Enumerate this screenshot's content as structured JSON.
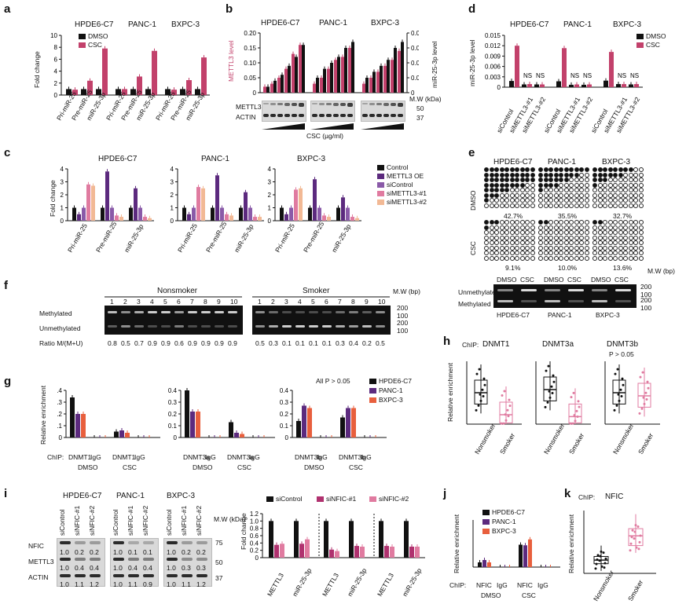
{
  "colors": {
    "dmso": "#111111",
    "csc": "#c2416b",
    "purple": "#5c2a7e",
    "magenta": "#b0326f",
    "pink": "#e07ba0",
    "peach": "#f2b995",
    "orange": "#e85f3d",
    "gray": "#555555"
  },
  "panel_labels": [
    "a",
    "b",
    "c",
    "d",
    "e",
    "f",
    "g",
    "h",
    "i",
    "j",
    "k"
  ],
  "a": {
    "ylabel": "Fold change",
    "legend": [
      "DMSO",
      "CSC"
    ],
    "groups": [
      "HPDE6-C7",
      "PANC-1",
      "BXPC-3"
    ],
    "categories": [
      "Pri-miR-25",
      "Pre-miR-25",
      "miR-25-3p"
    ],
    "yticks": [
      "0",
      "2",
      "4",
      "6",
      "8",
      "10"
    ]
  },
  "b": {
    "ylabel_left": "METTL3 level",
    "ylabel_right": "miR-25-3p level",
    "groups": [
      "HPDE6-C7",
      "PANC-1",
      "BXPC-3"
    ],
    "yticks_left": [
      "0",
      "0.05",
      "0.10",
      "0.15",
      "0.20"
    ],
    "yticks_right": [
      "0",
      "0.005",
      "0.010",
      "0.015",
      "0.020"
    ],
    "blot_labels": [
      "METTL3",
      "ACTIN"
    ],
    "mw_label": "M.W (kDa)",
    "mw": [
      "50",
      "37"
    ],
    "xlabel": "CSC (µg/ml)"
  },
  "c": {
    "ylabel": "Fold change",
    "groups": [
      "HPDE6-C7",
      "PANC-1",
      "BXPC-3"
    ],
    "categories": [
      "Pri-miR-25",
      "Pre-miR-25",
      "miR-25-3p"
    ],
    "legend": [
      "Control",
      "METTL3 OE",
      "siControl",
      "siMETTL3-#1",
      "siMETTL3-#2"
    ],
    "yticks": [
      "0",
      "1",
      "2",
      "3",
      "4"
    ]
  },
  "d": {
    "ylabel": "miR-25-3p level",
    "groups": [
      "HPDE6-C7",
      "PANC-1",
      "BXPC-3"
    ],
    "categories": [
      "siControl",
      "siMETTL3-#1",
      "siMETTL3-#2"
    ],
    "legend": [
      "DMSO",
      "CSC"
    ],
    "yticks": [
      "0",
      "0.003",
      "0.006",
      "0.009",
      "0.012",
      "0.015"
    ],
    "ns": "NS"
  },
  "e": {
    "groups": [
      "HPDE6-C7",
      "PANC-1",
      "BXPC-3"
    ],
    "rows": [
      "DMSO",
      "CSC"
    ],
    "dmso_pct": [
      "42.7%",
      "35.5%",
      "32.7%"
    ],
    "csc_pct": [
      "9.1%",
      "10.0%",
      "13.6%"
    ],
    "gel_header": [
      "DMSO",
      "CSC",
      "DMSO",
      "CSC",
      "DMSO",
      "CSC"
    ],
    "gel_rows": [
      "Unmethylated",
      "Methylated"
    ],
    "gel_mw_label": "M.W (bp)",
    "gel_mw": [
      "200",
      "100",
      "200",
      "100"
    ]
  },
  "f": {
    "groups": [
      "Nonsmoker",
      "Smoker"
    ],
    "lanes": [
      "1",
      "2",
      "3",
      "4",
      "5",
      "6",
      "7",
      "8",
      "9",
      "10"
    ],
    "rows": [
      "Methylated",
      "Unmethylated"
    ],
    "mw_label": "M.W (bp)",
    "mw": [
      "200",
      "100",
      "200",
      "100"
    ],
    "ratio_label": "Ratio M/(M+U)",
    "ratios_nonsmoker": [
      "0.8",
      "0.5",
      "0.7",
      "0.9",
      "0.9",
      "0.6",
      "0.9",
      "0.9",
      "0.9",
      "0.9"
    ],
    "ratios_smoker": [
      "0.5",
      "0.3",
      "0.1",
      "0.1",
      "0.1",
      "0.1",
      "0.3",
      "0.4",
      "0.2",
      "0.5"
    ]
  },
  "g": {
    "ylabel": "Relative enrichment",
    "chip_label": "ChIP:",
    "subpanels": [
      {
        "ab": [
          "DNMT1",
          "IgG",
          "DNMT1",
          "IgG"
        ],
        "yticks": [
          "0",
          "0.1",
          "0.2",
          "0.3",
          "0.4"
        ]
      },
      {
        "ab": [
          "DNMT3a",
          "IgG",
          "DNMT3a",
          "IgG"
        ],
        "yticks": [
          "0",
          "0.1",
          "0.2",
          "0.3",
          "0.4"
        ]
      },
      {
        "ab": [
          "DNMT3b",
          "IgG",
          "DNMT3b",
          "IgG"
        ],
        "yticks": [
          "0",
          "0.1",
          "0.2",
          "0.3",
          "0.4"
        ]
      }
    ],
    "conditions": [
      "DMSO",
      "CSC"
    ],
    "note": "All P > 0.05",
    "legend": [
      "HPDE6-C7",
      "PANC-1",
      "BXPC-3"
    ]
  },
  "h": {
    "ylabel": "Relative enrichment",
    "chip_label": "ChIP:",
    "titles": [
      "DNMT1",
      "DNMT3a",
      "DNMT3b"
    ],
    "note": "P > 0.05",
    "categories": [
      "Nonsmoker",
      "Smoker"
    ]
  },
  "i": {
    "groups": [
      "HPDE6-C7",
      "PANC-1",
      "BXPC-3"
    ],
    "lanes": [
      "siControl",
      "siNFIC-#1",
      "siNFIC-#2"
    ],
    "blot_labels": [
      "NFIC",
      "METTL3",
      "ACTIN"
    ],
    "mw_label": "M.W (kDa)",
    "mw": [
      "75",
      "50",
      "37"
    ],
    "nfic_ratios": [
      "1.0",
      "0.2",
      "0.2",
      "1.0",
      "0.1",
      "0.1",
      "1.0",
      "0.2",
      "0.2"
    ],
    "mettl3_ratios": [
      "1.0",
      "0.4",
      "0.4",
      "1.0",
      "0.4",
      "0.4",
      "1.0",
      "0.3",
      "0.3"
    ],
    "actin_ratios": [
      "1.0",
      "1.1",
      "1.2",
      "1.0",
      "1.1",
      "0.9",
      "1.0",
      "1.1",
      "1.2"
    ],
    "ylabel": "Fold change",
    "legend": [
      "siControl",
      "siNFIC-#1",
      "siNFIC-#2"
    ],
    "categories": [
      "METTL3",
      "miR-25-3p"
    ],
    "yticks": [
      "0",
      "0.2",
      "0.4",
      "0.6",
      "0.8",
      "1.0",
      "1.2"
    ]
  },
  "j": {
    "ylabel": "Relative enrichment",
    "chip_label": "ChIP:",
    "ab": [
      "NFIC",
      "IgG",
      "NFIC",
      "IgG"
    ],
    "conditions": [
      "DMSO",
      "CSC"
    ],
    "legend": [
      "HPDE6-C7",
      "PANC-1",
      "BXPC-3"
    ]
  },
  "k": {
    "ylabel": "Relative enrichment",
    "chip_label": "ChIP:",
    "title": "NFIC",
    "categories": [
      "Nonsmoker",
      "Smoker"
    ]
  },
  "chart_data": [
    {
      "type": "bar",
      "panel": "a",
      "categories": [
        "HPDE6-C7 Pri-miR-25",
        "HPDE6-C7 Pre-miR-25",
        "HPDE6-C7 miR-25-3p",
        "PANC-1 Pri-miR-25",
        "PANC-1 Pre-miR-25",
        "PANC-1 miR-25-3p",
        "BXPC-3 Pri-miR-25",
        "BXPC-3 Pre-miR-25",
        "BXPC-3 miR-25-3p"
      ],
      "series": [
        {
          "name": "DMSO",
          "values": [
            1.0,
            1.0,
            1.0,
            1.0,
            1.0,
            1.0,
            1.0,
            1.0,
            1.0
          ]
        },
        {
          "name": "CSC",
          "values": [
            0.9,
            2.4,
            7.8,
            1.0,
            3.1,
            7.4,
            0.9,
            2.5,
            6.3
          ]
        }
      ],
      "ylim": [
        0,
        10
      ],
      "ylabel": "Fold change"
    },
    {
      "type": "bar",
      "panel": "b",
      "categories": [
        "HPDE6-C7",
        "PANC-1",
        "BXPC-3"
      ],
      "series": [
        {
          "name": "METTL3 level",
          "values": [
            [
              0.02,
              0.03,
              0.05,
              0.08,
              0.13,
              0.16
            ],
            [
              0.03,
              0.05,
              0.08,
              0.11,
              0.12,
              0.15
            ],
            [
              0.03,
              0.05,
              0.07,
              0.09,
              0.11,
              0.14
            ]
          ]
        },
        {
          "name": "miR-25-3p level",
          "values": [
            [
              0.002,
              0.004,
              0.006,
              0.009,
              0.012,
              0.016
            ],
            [
              0.005,
              0.008,
              0.01,
              0.012,
              0.015,
              0.017
            ],
            [
              0.005,
              0.007,
              0.009,
              0.011,
              0.015,
              0.017
            ]
          ]
        }
      ],
      "ylim": [
        0,
        0.2
      ],
      "ylim_right": [
        0,
        0.02
      ]
    },
    {
      "type": "bar",
      "panel": "c",
      "categories": [
        "HPDE6-C7 Pri-miR-25",
        "HPDE6-C7 Pre-miR-25",
        "HPDE6-C7 miR-25-3p",
        "PANC-1 Pri-miR-25",
        "PANC-1 Pre-miR-25",
        "PANC-1 miR-25-3p",
        "BXPC-3 Pri-miR-25",
        "BXPC-3 Pre-miR-25",
        "BXPC-3 miR-25-3p"
      ],
      "series": [
        {
          "name": "Control",
          "values": [
            1.0,
            1.0,
            1.0,
            1.0,
            1.0,
            1.0,
            1.0,
            1.0,
            1.0
          ]
        },
        {
          "name": "METTL3 OE",
          "values": [
            0.5,
            3.8,
            2.5,
            0.5,
            3.5,
            2.2,
            0.5,
            3.2,
            1.8
          ]
        },
        {
          "name": "siControl",
          "values": [
            1.0,
            1.0,
            1.0,
            1.0,
            1.0,
            1.0,
            1.0,
            1.0,
            1.0
          ]
        },
        {
          "name": "siMETTL3-#1",
          "values": [
            2.8,
            0.4,
            0.3,
            2.6,
            0.5,
            0.3,
            2.4,
            0.4,
            0.3
          ]
        },
        {
          "name": "siMETTL3-#2",
          "values": [
            2.7,
            0.3,
            0.2,
            2.5,
            0.4,
            0.3,
            2.5,
            0.3,
            0.2
          ]
        }
      ],
      "ylim": [
        0,
        4
      ]
    },
    {
      "type": "bar",
      "panel": "d",
      "categories": [
        "HPDE6-C7 siControl",
        "HPDE6-C7 siMETTL3-#1",
        "HPDE6-C7 siMETTL3-#2",
        "PANC-1 siControl",
        "PANC-1 siMETTL3-#1",
        "PANC-1 siMETTL3-#2",
        "BXPC-3 siControl",
        "BXPC-3 siMETTL3-#1",
        "BXPC-3 siMETTL3-#2"
      ],
      "series": [
        {
          "name": "DMSO",
          "values": [
            0.0018,
            0.0008,
            0.0008,
            0.0017,
            0.0007,
            0.0007,
            0.0019,
            0.0009,
            0.0008
          ]
        },
        {
          "name": "CSC",
          "values": [
            0.012,
            0.0009,
            0.0008,
            0.0113,
            0.0008,
            0.0008,
            0.0102,
            0.0009,
            0.0009
          ]
        }
      ],
      "ylim": [
        0,
        0.015
      ]
    },
    {
      "type": "bar",
      "panel": "g",
      "categories": [
        "DNMT1 DMSO",
        "IgG DMSO",
        "DNMT1 CSC",
        "IgG CSC",
        "DNMT3a DMSO",
        "IgG DMSO",
        "DNMT3a CSC",
        "IgG CSC",
        "DNMT3b DMSO",
        "IgG DMSO",
        "DNMT3b CSC",
        "IgG CSC"
      ],
      "series": [
        {
          "name": "HPDE6-C7",
          "values": [
            0.34,
            0.0,
            0.05,
            0.0,
            0.4,
            0.0,
            0.13,
            0.0,
            0.14,
            0.0,
            0.17,
            0.0
          ]
        },
        {
          "name": "PANC-1",
          "values": [
            0.2,
            0.0,
            0.06,
            0.0,
            0.22,
            0.0,
            0.04,
            0.0,
            0.27,
            0.0,
            0.25,
            0.0
          ]
        },
        {
          "name": "BXPC-3",
          "values": [
            0.2,
            0.0,
            0.04,
            0.0,
            0.22,
            0.0,
            0.03,
            0.0,
            0.25,
            0.0,
            0.25,
            0.0
          ]
        }
      ],
      "ylim": [
        0,
        0.4
      ]
    },
    {
      "type": "bar",
      "panel": "i",
      "categories": [
        "HPDE6-C7 METTL3",
        "HPDE6-C7 miR-25-3p",
        "PANC-1 METTL3",
        "PANC-1 miR-25-3p",
        "BXPC-3 METTL3",
        "BXPC-3 miR-25-3p"
      ],
      "series": [
        {
          "name": "siControl",
          "values": [
            1.0,
            1.0,
            1.0,
            1.0,
            1.0,
            1.0
          ]
        },
        {
          "name": "siNFIC-#1",
          "values": [
            0.35,
            0.38,
            0.22,
            0.32,
            0.32,
            0.3
          ]
        },
        {
          "name": "siNFIC-#2",
          "values": [
            0.38,
            0.5,
            0.18,
            0.3,
            0.3,
            0.3
          ]
        }
      ],
      "ylim": [
        0,
        1.2
      ],
      "ylabel": "Fold change"
    },
    {
      "type": "bar",
      "panel": "j",
      "categories": [
        "NFIC DMSO",
        "IgG DMSO",
        "NFIC CSC",
        "IgG CSC"
      ],
      "series": [
        {
          "name": "HPDE6-C7",
          "values": [
            0.08,
            0.0,
            0.38,
            0.0
          ]
        },
        {
          "name": "PANC-1",
          "values": [
            0.12,
            0.0,
            0.37,
            0.0
          ]
        },
        {
          "name": "BXPC-3",
          "values": [
            0.08,
            0.0,
            0.47,
            0.0
          ]
        }
      ],
      "ylim": [
        0,
        0.8
      ]
    },
    {
      "type": "box",
      "panel": "h",
      "categories": [
        "DNMT1 Nonsmoker",
        "DNMT1 Smoker",
        "DNMT3a Nonsmoker",
        "DNMT3a Smoker",
        "DNMT3b Nonsmoker",
        "DNMT3b Smoker"
      ],
      "medians": [
        0.5,
        0.15,
        0.55,
        0.12,
        0.5,
        0.45
      ]
    },
    {
      "type": "box",
      "panel": "k",
      "categories": [
        "Nonsmoker",
        "Smoker"
      ],
      "medians": [
        0.55,
        1.55
      ]
    }
  ]
}
